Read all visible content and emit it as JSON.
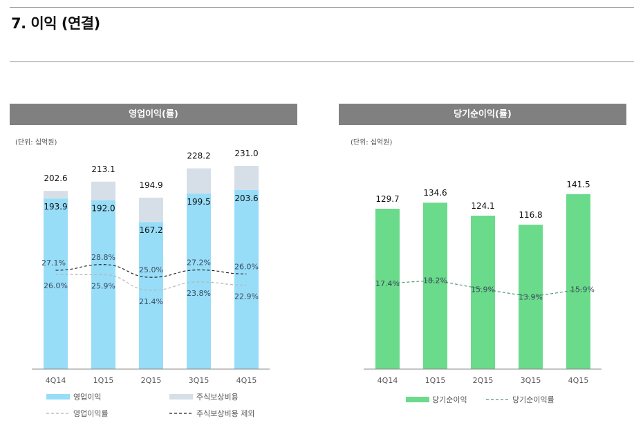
{
  "page": {
    "title": "7. 이익 (연결)"
  },
  "colors": {
    "operating_profit": "#97DDF8",
    "stock_comp": "#D6DFE7",
    "net_income": "#6ADB8A",
    "op_margin_line": "#b5b5b5",
    "ex_stock_line": "#222222",
    "net_margin_line": "#4f9a6a",
    "header_bg": "#808080"
  },
  "chart_data": [
    {
      "type": "bar",
      "title": "영업이익(률)",
      "unit": "(단위: 십억원)",
      "categories": [
        "4Q14",
        "1Q15",
        "2Q15",
        "3Q15",
        "4Q15"
      ],
      "stacked": true,
      "series": [
        {
          "name": "영업이익",
          "kind": "bar",
          "values": [
            193.9,
            192.0,
            167.2,
            199.5,
            203.6
          ]
        },
        {
          "name": "주식보상비용",
          "kind": "bar",
          "values": [
            8.7,
            21.1,
            27.7,
            28.7,
            27.4
          ]
        },
        {
          "name": "영업이익률",
          "kind": "line",
          "values": [
            26.0,
            25.9,
            21.4,
            23.8,
            22.9
          ],
          "labels": [
            "26.0%",
            "25.9%",
            "21.4%",
            "23.8%",
            "22.9%"
          ]
        },
        {
          "name": "주식보상비용 제외",
          "kind": "line",
          "values": [
            27.1,
            28.8,
            25.0,
            27.2,
            26.0
          ],
          "labels": [
            "27.1%",
            "28.8%",
            "25.0%",
            "27.2%",
            "26.0%"
          ]
        }
      ],
      "bar_labels": [
        "193.9",
        "192.0",
        "167.2",
        "199.5",
        "203.6"
      ],
      "total_labels": [
        "202.6",
        "213.1",
        "194.9",
        "228.2",
        "231.0"
      ],
      "totals": [
        202.6,
        213.1,
        194.9,
        228.2,
        231.0
      ],
      "ylim": [
        0,
        240
      ],
      "legend": [
        {
          "label": "영업이익",
          "style": "bar-blue"
        },
        {
          "label": "주식보상비용",
          "style": "bar-gray"
        },
        {
          "label": "영업이익률",
          "style": "dash-gray"
        },
        {
          "label": "주식보상비용 제외",
          "style": "dash-black"
        }
      ],
      "legend_position": "bottom",
      "grid": false
    },
    {
      "type": "bar",
      "title": "당기순이익(률)",
      "unit": "(단위: 십억원)",
      "categories": [
        "4Q14",
        "1Q15",
        "2Q15",
        "3Q15",
        "4Q15"
      ],
      "series": [
        {
          "name": "당기순이익",
          "kind": "bar",
          "values": [
            129.7,
            134.6,
            124.1,
            116.8,
            141.5
          ]
        },
        {
          "name": "당기순이익률",
          "kind": "line",
          "values": [
            17.4,
            18.2,
            15.9,
            13.9,
            15.9
          ],
          "labels": [
            "17.4%",
            "18.2%",
            "15.9%",
            "13.9%",
            "15.9%"
          ]
        }
      ],
      "bar_labels": [
        "129.7",
        "134.6",
        "124.1",
        "116.8",
        "141.5"
      ],
      "ylim": [
        0,
        145
      ],
      "legend": [
        {
          "label": "당기순이익",
          "style": "bar-green"
        },
        {
          "label": "당기순이익률",
          "style": "dash-green"
        }
      ],
      "legend_position": "bottom",
      "grid": false
    }
  ]
}
